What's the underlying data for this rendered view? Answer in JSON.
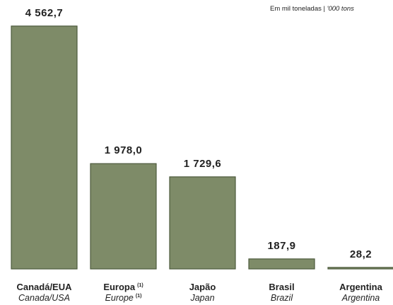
{
  "chart_data": {
    "type": "bar",
    "unit": "Em mil toneladas |",
    "unit_en": "'000 tons",
    "categories": [
      "Canadá/EUA",
      "Europa",
      "Japão",
      "Brasil",
      "Argentina"
    ],
    "categories_en": [
      "Canada/USA",
      "Europe",
      "Japan",
      "Brazil",
      "Argentina"
    ],
    "category_marks": [
      null,
      "(1)",
      null,
      null,
      null
    ],
    "values": [
      4562.7,
      1978.0,
      1729.6,
      187.9,
      28.2
    ],
    "value_labels": [
      "4 562,7",
      "1 978,0",
      "1 729,6",
      "187,9",
      "28,2"
    ],
    "color": "#7e8b68",
    "ylim": [
      0,
      4600
    ]
  }
}
